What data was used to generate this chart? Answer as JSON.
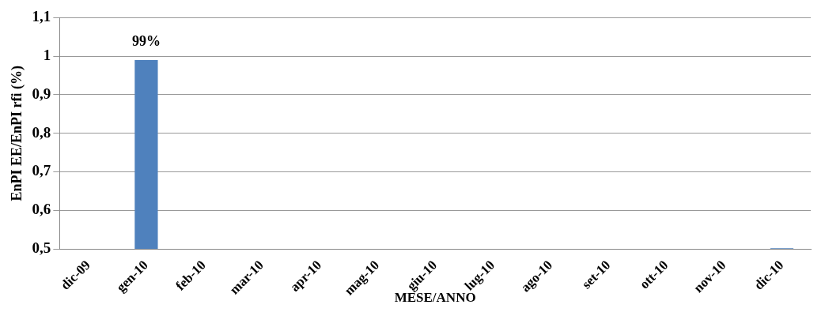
{
  "chart_data": {
    "type": "bar",
    "xlabel": "MESE/ANNO",
    "ylabel": "EnPI EE/EnPI rfi (%)",
    "categories": [
      "dic-09",
      "gen-10",
      "feb-10",
      "mar-10",
      "apr-10",
      "mag-10",
      "giu-10",
      "lug-10",
      "ago-10",
      "set-10",
      "ott-10",
      "nov-10",
      "dic-10"
    ],
    "values": [
      null,
      0.99,
      null,
      null,
      null,
      null,
      null,
      null,
      null,
      null,
      null,
      null,
      0.502
    ],
    "value_labels": [
      null,
      "99%",
      null,
      null,
      null,
      null,
      null,
      null,
      null,
      null,
      null,
      null,
      null
    ],
    "color": "#4f81bd",
    "ylim": [
      0.5,
      1.1
    ],
    "yticks": [
      {
        "value": 0.5,
        "label": "0,5"
      },
      {
        "value": 0.6,
        "label": "0,6"
      },
      {
        "value": 0.7,
        "label": "0,7"
      },
      {
        "value": 0.8,
        "label": "0,8"
      },
      {
        "value": 0.9,
        "label": "0,9"
      },
      {
        "value": 1,
        "label": "1"
      },
      {
        "value": 1.1,
        "label": "1,1"
      }
    ],
    "grid": "y",
    "legend": false
  }
}
